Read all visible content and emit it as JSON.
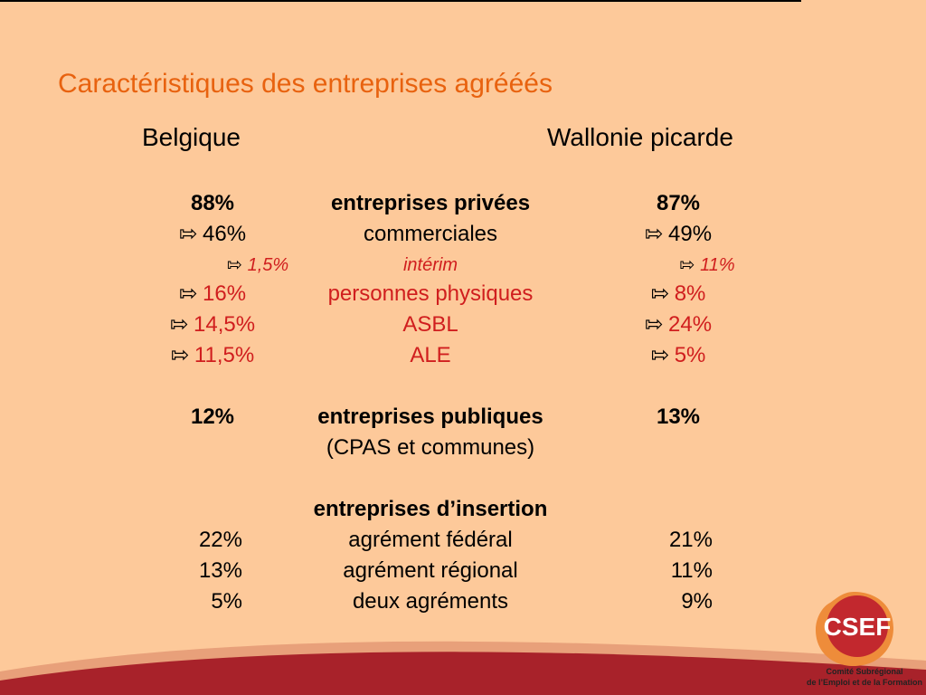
{
  "title": "Caractéristiques des entreprises agrééés",
  "headers": {
    "left": "Belgique",
    "right": "Wallonie picarde"
  },
  "arrow_glyph": "⇰",
  "rows": [
    {
      "left": "88%",
      "mid": "entreprises privées",
      "right": "87%",
      "style": "bold"
    },
    {
      "left": "46%",
      "mid": "commerciales",
      "right": "49%",
      "style": "arrow"
    },
    {
      "left": "1,5%",
      "mid": "intérim",
      "right": "11%",
      "style": "small"
    },
    {
      "left": "16%",
      "mid": "personnes physiques",
      "right": "8%",
      "style": "red"
    },
    {
      "left": "14,5%",
      "mid": "ASBL",
      "right": "24%",
      "style": "red"
    },
    {
      "left": "11,5%",
      "mid": "ALE",
      "right": "5%",
      "style": "red"
    },
    {
      "left": "12%",
      "mid": "entreprises publiques",
      "right": "13%",
      "style": "bold"
    },
    {
      "left": "",
      "mid": "(CPAS et communes)",
      "right": "",
      "style": "plain"
    },
    {
      "left": "",
      "mid": "entreprises d’insertion",
      "right": "",
      "style": "bold"
    },
    {
      "left": "22%",
      "mid": "agrément fédéral",
      "right": "21%",
      "style": "num"
    },
    {
      "left": "13%",
      "mid": "agrément régional",
      "right": "11%",
      "style": "num"
    },
    {
      "left": "5%",
      "mid": "deux agréments",
      "right": "9%",
      "style": "num"
    }
  ],
  "logo": {
    "acronym": "CSEF",
    "caption_line1": "Comité Subrégional",
    "caption_line2": "de l’Emploi et de la Formation"
  },
  "colors": {
    "background": "#fdc99a",
    "title": "#e8620f",
    "highlight_red": "#d01e1e",
    "band_dark": "#a8222a",
    "band_light": "#e8a07a",
    "logo_circle": "#c2282e",
    "logo_outer": "#ee8c3a"
  }
}
